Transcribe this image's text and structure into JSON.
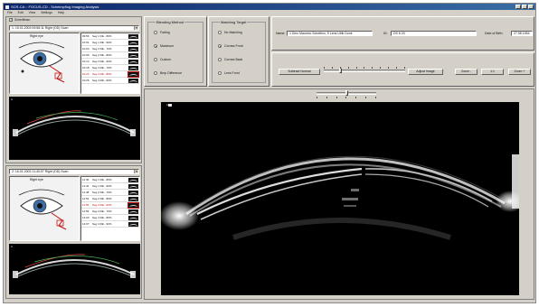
{
  "window": {
    "title": "SCR-CA :: FOCUS-CD - Scheimpflug Imaging Analysis"
  },
  "menu": [
    "File",
    "Edit",
    "View",
    "Settings",
    "Help"
  ],
  "top_check": {
    "label": "Scheiflman",
    "checked": true
  },
  "session1": {
    "combo": "1: 15.01.2003 09:56:11 Right (OD) Scan",
    "eye_label": "Right eye",
    "rows": [
      {
        "time": "09:56",
        "desc": "Seg 1 RE - 80%"
      },
      {
        "time": "10:01",
        "desc": "Seg 1 RE - 90%"
      },
      {
        "time": "10:04",
        "desc": "Seg 2 RE - 70%"
      },
      {
        "time": "10:09",
        "desc": "Seg 2 RE - 80%"
      },
      {
        "time": "10:14",
        "desc": "Seg 3 RE - 60%"
      },
      {
        "time": "10:18",
        "desc": "Seg 3 RE - 70%"
      },
      {
        "time": "10:22",
        "desc": "Seg 4 RE - 80%"
      },
      {
        "time": "10:26",
        "desc": "Seg 4 RE - 90%"
      }
    ],
    "selected_row": 6
  },
  "session2": {
    "combo": "2: 16.01.2003 11:40:07 Right (OD) Scan",
    "eye_label": "Right eye",
    "rows": [
      {
        "time": "11:40",
        "desc": "Seg 1 RE - 80%"
      },
      {
        "time": "11:44",
        "desc": "Seg 1 RE - 90%"
      },
      {
        "time": "11:48",
        "desc": "Seg 2 RE - 70%"
      },
      {
        "time": "11:52",
        "desc": "Seg 2 RE - 80%"
      },
      {
        "time": "11:55",
        "desc": "Seg 3 RE - 60%"
      },
      {
        "time": "11:59",
        "desc": "Seg 3 RE - 70%"
      },
      {
        "time": "12:03",
        "desc": "Seg 4 RE - 80%"
      },
      {
        "time": "12:07",
        "desc": "Seg 4 RE - 90%"
      }
    ],
    "selected_row": 4
  },
  "blending": {
    "title": "Blending Method",
    "options": [
      "Fading",
      "Maximum",
      "Custom",
      "Bmp Difference"
    ],
    "selected": 1
  },
  "matching": {
    "title": "Matching Target",
    "options": [
      "No Matching",
      "Cornea Front",
      "Cornea Back",
      "Lens Front"
    ],
    "selected": 1
  },
  "patient": {
    "name_label": "Name:",
    "name_value": "1 Dino Mauricio Schettino, 5 Lens Ulrik Done",
    "id_label": "ID:",
    "id_value": "DS 6 20",
    "dob_label": "Date of Birth:",
    "dob_value": "27.08.1954"
  },
  "toolbar": {
    "subtract_label": "Subtract Normal",
    "adjust_label": "Adjust Image",
    "zoom_minus": "Zoom -",
    "zoom_1x": "1:1",
    "zoom_plus": "Zoom +",
    "subtract_level": 0.2
  },
  "view": {
    "top_slider_level": 0.5,
    "corner_label": "A"
  },
  "colors": {
    "face": "#d4d0c8",
    "titlebar": "#0a246a",
    "selected_text": "#c01010"
  }
}
